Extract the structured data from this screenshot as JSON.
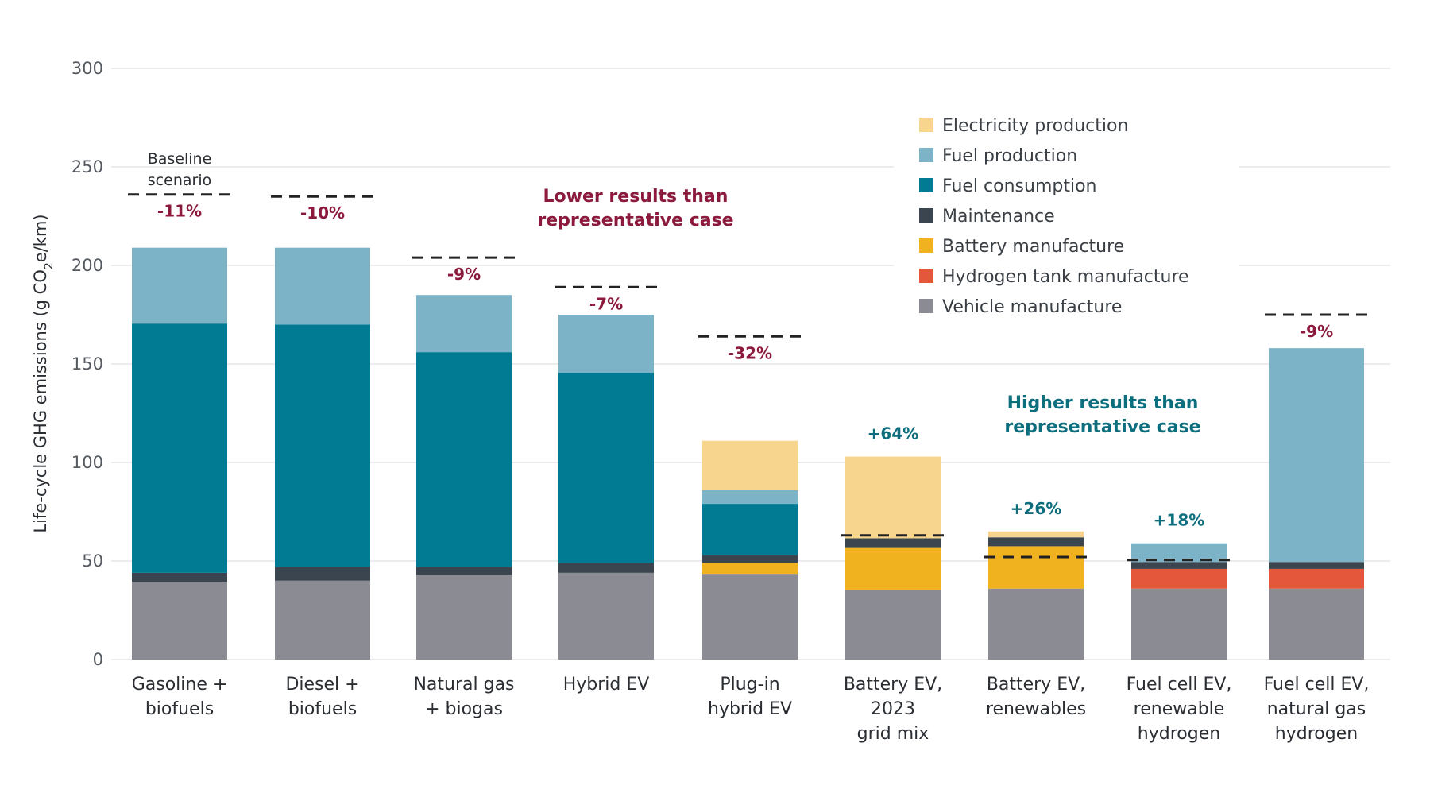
{
  "chart_data": {
    "type": "bar",
    "stacked": true,
    "title": "",
    "xlabel": "",
    "ylabel": "Life-cycle GHG emissions (g CO2e/km)",
    "ylabel_parts": {
      "pre": "Life-cycle GHG emissions (g CO",
      "sub": "2",
      "post": "e/km)"
    },
    "ylim": [
      0,
      300
    ],
    "yticks": [
      0,
      50,
      100,
      150,
      200,
      250,
      300
    ],
    "grid": true,
    "legend_position": "top-right",
    "categories": [
      [
        "Gasoline +",
        "biofuels"
      ],
      [
        "Diesel +",
        "biofuels"
      ],
      [
        "Natural gas",
        "+ biogas"
      ],
      [
        "Hybrid EV"
      ],
      [
        "Plug-in",
        "hybrid EV"
      ],
      [
        "Battery EV,",
        "2023",
        "grid mix"
      ],
      [
        "Battery EV,",
        "renewables"
      ],
      [
        "Fuel cell EV,",
        "renewable",
        "hydrogen"
      ],
      [
        "Fuel cell EV,",
        "natural gas",
        "hydrogen"
      ]
    ],
    "series": [
      {
        "name": "Vehicle manufacture",
        "color": "#8a8b93",
        "values": [
          39.5,
          40,
          43,
          44,
          43.5,
          35.5,
          36,
          36,
          36
        ]
      },
      {
        "name": "Hydrogen tank manufacture",
        "color": "#e4573a",
        "values": [
          0,
          0,
          0,
          0,
          0,
          0,
          0,
          10,
          10
        ]
      },
      {
        "name": "Battery manufacture",
        "color": "#f0b21e",
        "values": [
          0,
          0,
          0,
          0,
          5.5,
          21.5,
          21.5,
          0,
          0
        ]
      },
      {
        "name": "Maintenance",
        "color": "#3a4550",
        "values": [
          4.5,
          7,
          4,
          5,
          4,
          4.5,
          4.5,
          3.5,
          3.5
        ]
      },
      {
        "name": "Fuel consumption",
        "color": "#007b93",
        "values": [
          126.5,
          123,
          109,
          96.5,
          26,
          0,
          0,
          0,
          0
        ]
      },
      {
        "name": "Fuel production",
        "color": "#7db3c6",
        "values": [
          38.5,
          39,
          29,
          29.5,
          7,
          0,
          0,
          9.5,
          108.5
        ]
      },
      {
        "name": "Electricity production",
        "color": "#f8d58e",
        "values": [
          0,
          0,
          0,
          0,
          25,
          41.5,
          3,
          0,
          0
        ]
      }
    ],
    "legend_order": [
      "Electricity production",
      "Fuel production",
      "Fuel consumption",
      "Maintenance",
      "Battery manufacture",
      "Hydrogen tank manufacture",
      "Vehicle manufacture"
    ],
    "baseline_scenario": {
      "label": [
        "Baseline",
        "scenario"
      ],
      "values": [
        236,
        235,
        204,
        189,
        164,
        63,
        52,
        50.5,
        175
      ],
      "pct_change": [
        "-11%",
        "-10%",
        "-9%",
        "-7%",
        "-32%",
        "+64%",
        "+26%",
        "+18%",
        "-9%"
      ]
    },
    "annotations": {
      "lower": {
        "lines": [
          "Lower results than",
          "representative case"
        ],
        "color": "#8b1a3c"
      },
      "higher": {
        "lines": [
          "Higher results than",
          "representative case"
        ],
        "color": "#0d6e7e"
      }
    },
    "colors": {
      "negative": "#8b1a3c",
      "positive": "#0d6e7e",
      "grid": "#e6e6e6",
      "dash": "#222222"
    }
  }
}
